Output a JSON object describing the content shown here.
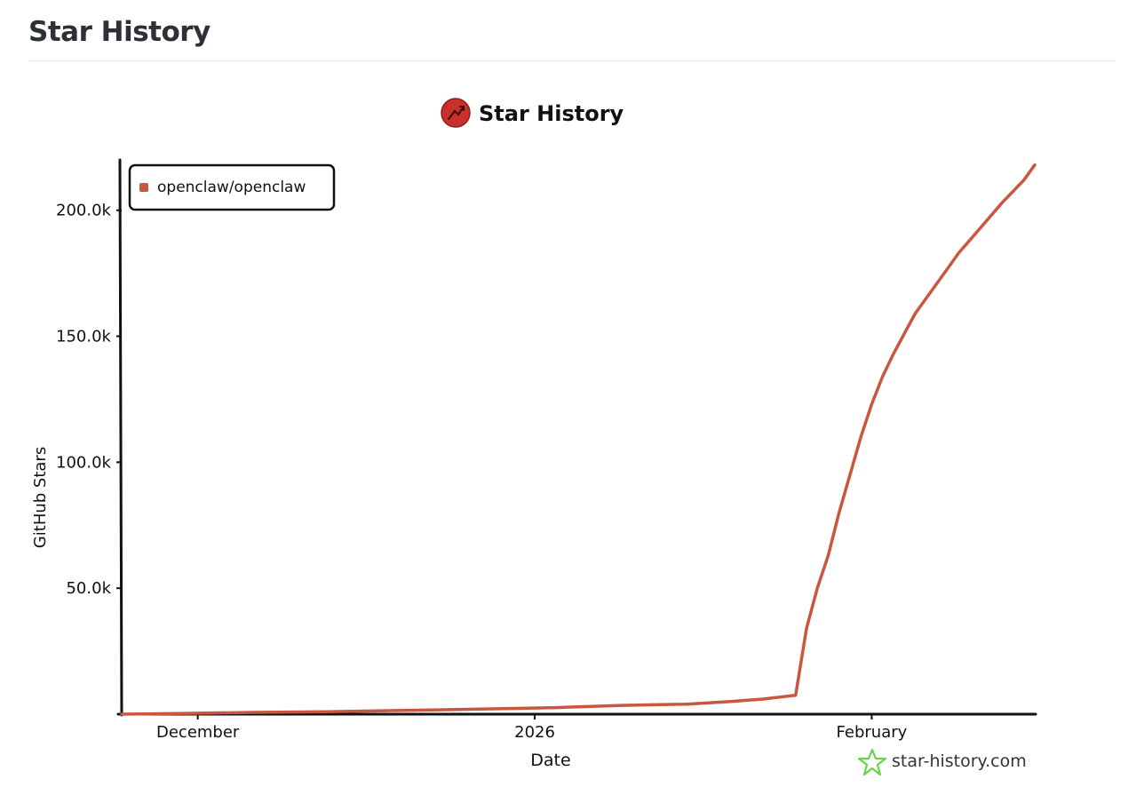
{
  "page": {
    "title": "Star History"
  },
  "chart_header": {
    "title": "Star History",
    "logo_icon": "star-history-logo-icon"
  },
  "watermark": {
    "text": "star-history.com",
    "icon": "star-outline-icon",
    "color": "#6ad14f"
  },
  "chart_data": {
    "type": "line",
    "title": "Star History",
    "xlabel": "Date",
    "ylabel": "GitHub Stars",
    "x_type": "date",
    "xlim": [
      "2025-11-24",
      "2026-02-16"
    ],
    "ylim": [
      0,
      220000
    ],
    "y_ticks": [
      {
        "value": 50000,
        "label": "50.0k"
      },
      {
        "value": 100000,
        "label": "100.0k"
      },
      {
        "value": 150000,
        "label": "150.0k"
      },
      {
        "value": 200000,
        "label": "200.0k"
      }
    ],
    "x_ticks": [
      {
        "date": "2025-12-01",
        "label": "December"
      },
      {
        "date": "2026-01-01",
        "label": "2026"
      },
      {
        "date": "2026-02-01",
        "label": "February"
      }
    ],
    "grid": false,
    "legend_position": "top-left",
    "series": [
      {
        "name": "openclaw/openclaw",
        "color": "#c8573f",
        "points": [
          [
            "2025-11-24",
            0
          ],
          [
            "2025-11-30",
            300
          ],
          [
            "2025-12-06",
            700
          ],
          [
            "2025-12-13",
            1000
          ],
          [
            "2025-12-20",
            1500
          ],
          [
            "2025-12-27",
            2000
          ],
          [
            "2026-01-03",
            2600
          ],
          [
            "2026-01-09",
            3500
          ],
          [
            "2026-01-15",
            4000
          ],
          [
            "2026-01-19",
            5000
          ],
          [
            "2026-01-22",
            6000
          ],
          [
            "2026-01-25",
            7500
          ],
          [
            "2026-01-26",
            34000
          ],
          [
            "2026-01-27",
            50000
          ],
          [
            "2026-01-28",
            63000
          ],
          [
            "2026-01-29",
            80000
          ],
          [
            "2026-01-30",
            95000
          ],
          [
            "2026-01-31",
            110000
          ],
          [
            "2026-02-01",
            123000
          ],
          [
            "2026-02-02",
            134000
          ],
          [
            "2026-02-03",
            143000
          ],
          [
            "2026-02-04",
            151000
          ],
          [
            "2026-02-05",
            159000
          ],
          [
            "2026-02-06",
            165000
          ],
          [
            "2026-02-07",
            171000
          ],
          [
            "2026-02-08",
            177000
          ],
          [
            "2026-02-09",
            183000
          ],
          [
            "2026-02-11",
            193000
          ],
          [
            "2026-02-13",
            203000
          ],
          [
            "2026-02-15",
            212000
          ],
          [
            "2026-02-16",
            218000
          ]
        ]
      }
    ]
  }
}
